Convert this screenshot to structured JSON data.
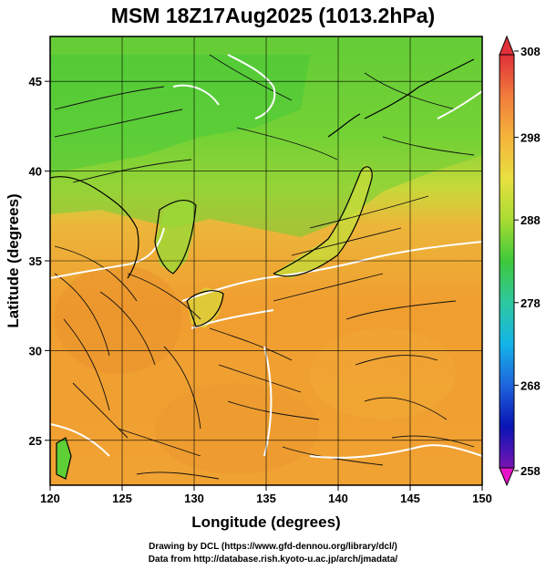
{
  "title": "MSM 18Z17Aug2025 (1013.2hPa)",
  "axes": {
    "xlabel": "Longitude (degrees)",
    "ylabel": "Latitude  (degrees)",
    "x_ticks": [
      "120",
      "125",
      "130",
      "135",
      "140",
      "145",
      "150"
    ],
    "y_ticks": [
      "25",
      "30",
      "35",
      "40",
      "45"
    ]
  },
  "colorbar": {
    "tick_labels": [
      "308",
      "298",
      "288",
      "278",
      "268",
      "258"
    ],
    "colors_top_to_bottom": [
      "#e0303a",
      "#f07c3c",
      "#f5b43c",
      "#e8e040",
      "#a8dc32",
      "#3ec83c",
      "#2ec8a0",
      "#14b4e8",
      "#1e64dc",
      "#0a14b4",
      "#7814b4",
      "#e614c8"
    ]
  },
  "footer": {
    "line1": "Drawing by DCL (https://www.gfd-dennou.org/library/dcl/)",
    "line2": "Data from http://database.rish.kyoto-u.ac.jp/arch/jmadata/"
  },
  "colors": {
    "land_green": "#5ed230",
    "ocean_orange": "#f0a030",
    "contour_white": "#ffffff"
  }
}
